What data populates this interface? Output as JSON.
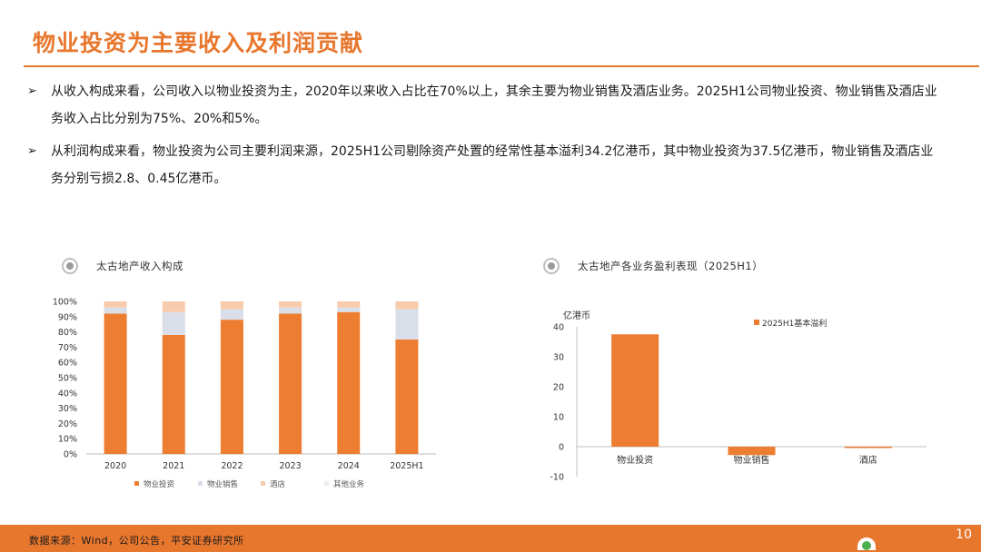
{
  "page": {
    "title": "物业投资为主要收入及利润贡献",
    "bullets": [
      "从收入构成来看，公司收入以物业投资为主，2020年以来收入占比在70%以上，其余主要为物业销售及酒店业务。2025H1公司物业投资、物业销售及酒店业务收入占比分别为75%、20%和5%。",
      "从利润构成来看，物业投资为公司主要利润来源，2025H1公司剔除资产处置的经常性基本溢利34.2亿港币，其中物业投资为37.5亿港币，物业销售及酒店业务分别亏损2.8、0.45亿港币。"
    ],
    "bullet_symbol": "➢",
    "source": "数据来源：Wind，公司公告，平安证券研究所",
    "page_number": "10"
  },
  "icons": {
    "chart_marker": "target-icon",
    "brand": "brand-logo-icon"
  },
  "colors": {
    "accent": "#e8772e",
    "property_investment": "#ed7d31",
    "property_sales": "#d9dee8",
    "hotel": "#f8cbad",
    "other": "#ececec"
  },
  "chart_data": [
    {
      "type": "bar",
      "stacked": true,
      "title": "太古地产收入构成",
      "categories": [
        "2020",
        "2021",
        "2022",
        "2023",
        "2024",
        "2025H1"
      ],
      "series": [
        {
          "name": "物业投资",
          "values": [
            92,
            78,
            88,
            92,
            93,
            75
          ]
        },
        {
          "name": "物业销售",
          "values": [
            4,
            15,
            7,
            4,
            3,
            20
          ]
        },
        {
          "name": "酒店",
          "values": [
            4,
            7,
            5,
            4,
            4,
            5
          ]
        },
        {
          "name": "其他业务",
          "values": [
            0,
            0,
            0,
            0,
            0,
            0
          ]
        }
      ],
      "y_ticks": [
        "0%",
        "10%",
        "20%",
        "30%",
        "40%",
        "50%",
        "60%",
        "70%",
        "80%",
        "90%",
        "100%"
      ],
      "ylim": [
        0,
        100
      ],
      "legend": "bottom",
      "grid": false
    },
    {
      "type": "bar",
      "title": "太古地产各业务盈利表现（2025H1）",
      "ylabel": "亿港币",
      "categories": [
        "物业投资",
        "物业销售",
        "酒店"
      ],
      "series": [
        {
          "name": "2025H1基本溢利",
          "values": [
            37.5,
            -2.8,
            -0.45
          ]
        }
      ],
      "y_ticks": [
        "-10",
        "0",
        "10",
        "20",
        "30",
        "40"
      ],
      "ylim": [
        -10,
        40
      ],
      "legend": "top-right",
      "grid": false
    }
  ]
}
